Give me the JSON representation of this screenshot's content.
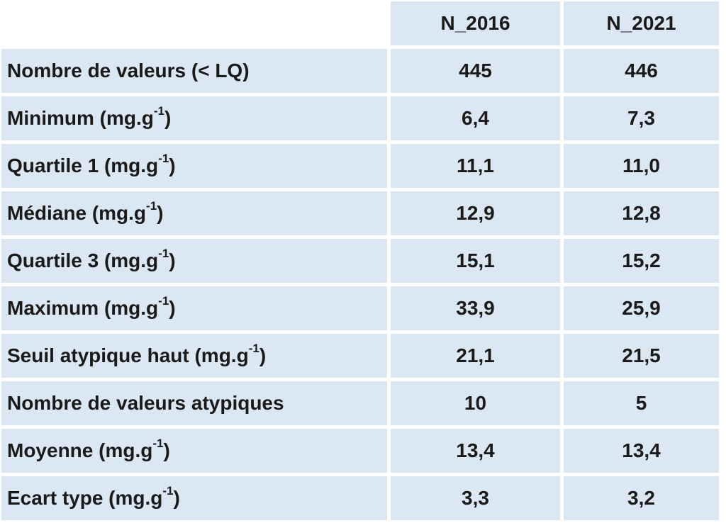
{
  "table": {
    "columns": [
      "N_2016",
      "N_2021"
    ],
    "rows": [
      {
        "label": "Nombre de valeurs (< LQ)",
        "unit": "",
        "unit_close": "",
        "v1": "445",
        "v2": "446"
      },
      {
        "label": "Minimum ",
        "unit": "(mg.g",
        "unit_close": ")",
        "sup": "-1",
        "v1": "6,4",
        "v2": "7,3"
      },
      {
        "label": "Quartile 1 ",
        "unit": "(mg.g",
        "unit_close": ")",
        "sup": "-1",
        "v1": "11,1",
        "v2": "11,0"
      },
      {
        "label": "Médiane ",
        "unit": "(mg.g",
        "unit_close": ")",
        "sup": "-1",
        "v1": "12,9",
        "v2": "12,8"
      },
      {
        "label": "Quartile 3 ",
        "unit": "(mg.g",
        "unit_close": ")",
        "sup": "-1",
        "v1": "15,1",
        "v2": "15,2"
      },
      {
        "label": "Maximum ",
        "unit": "(mg.g",
        "unit_close": ")",
        "sup": "-1",
        "v1": "33,9",
        "v2": "25,9"
      },
      {
        "label": "Seuil atypique haut ",
        "unit": "(mg.g",
        "unit_close": ")",
        "sup": "-1",
        "v1": "21,1",
        "v2": "21,5"
      },
      {
        "label": "Nombre de valeurs atypiques",
        "unit": "",
        "unit_close": "",
        "v1": "10",
        "v2": "5"
      },
      {
        "label": "Moyenne ",
        "unit": "(mg.g",
        "unit_close": ")",
        "sup": "-1",
        "v1": "13,4",
        "v2": "13,4"
      },
      {
        "label": "Ecart type ",
        "unit": "(mg.g",
        "unit_close": ")",
        "sup": "-1",
        "v1": "3,3",
        "v2": "3,2"
      }
    ]
  },
  "colors": {
    "cell_background": "#dbe7f3",
    "text": "#1a1a1a"
  }
}
